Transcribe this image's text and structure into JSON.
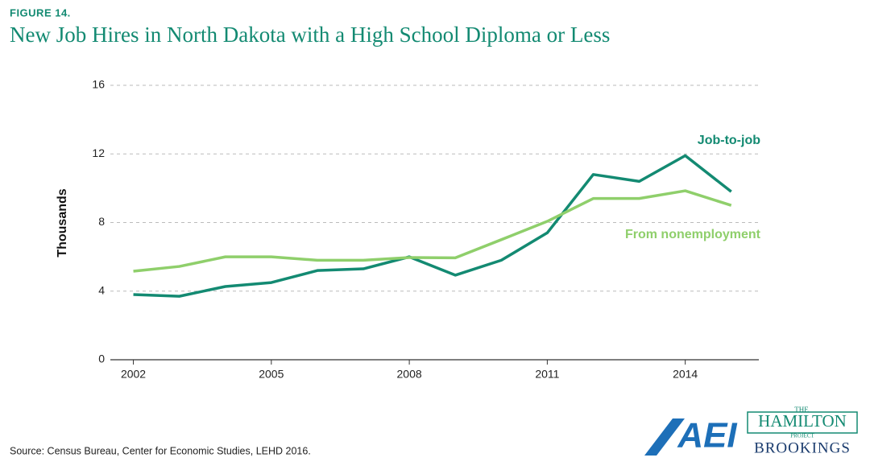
{
  "chart_data": {
    "type": "line",
    "figure_label": "FIGURE 14.",
    "title": "New Job Hires in North Dakota with a High School Diploma or Less",
    "y_label": "Thousands",
    "x": [
      2002,
      2003,
      2004,
      2005,
      2006,
      2007,
      2008,
      2009,
      2010,
      2011,
      2012,
      2013,
      2014,
      2015
    ],
    "series": [
      {
        "name": "Job-to-job",
        "color": "#138a72",
        "values": [
          3.8,
          3.7,
          4.27,
          4.5,
          5.2,
          5.3,
          6.0,
          4.93,
          5.8,
          7.4,
          10.8,
          10.4,
          11.9,
          9.8
        ]
      },
      {
        "name": "From nonemployment",
        "color": "#8fcf6b",
        "values": [
          5.16,
          5.44,
          6.0,
          6.0,
          5.8,
          5.8,
          5.96,
          5.94,
          7.0,
          8.07,
          9.4,
          9.4,
          9.85,
          9.0
        ]
      }
    ],
    "xlim": [
      2001.5,
      2015.6
    ],
    "xticks": [
      2002,
      2005,
      2008,
      2011,
      2014
    ],
    "ylim": [
      0,
      16
    ],
    "yticks": [
      0,
      4,
      8,
      12,
      16
    ],
    "grid": true,
    "source": "Source: Census Bureau, Center for Economic Studies, LEHD 2016."
  },
  "logos": {
    "aei": "AEI",
    "hamilton_the": "THE",
    "hamilton": "HAMILTON",
    "hamilton_project": "PROJECT",
    "brookings": "BROOKINGS"
  }
}
